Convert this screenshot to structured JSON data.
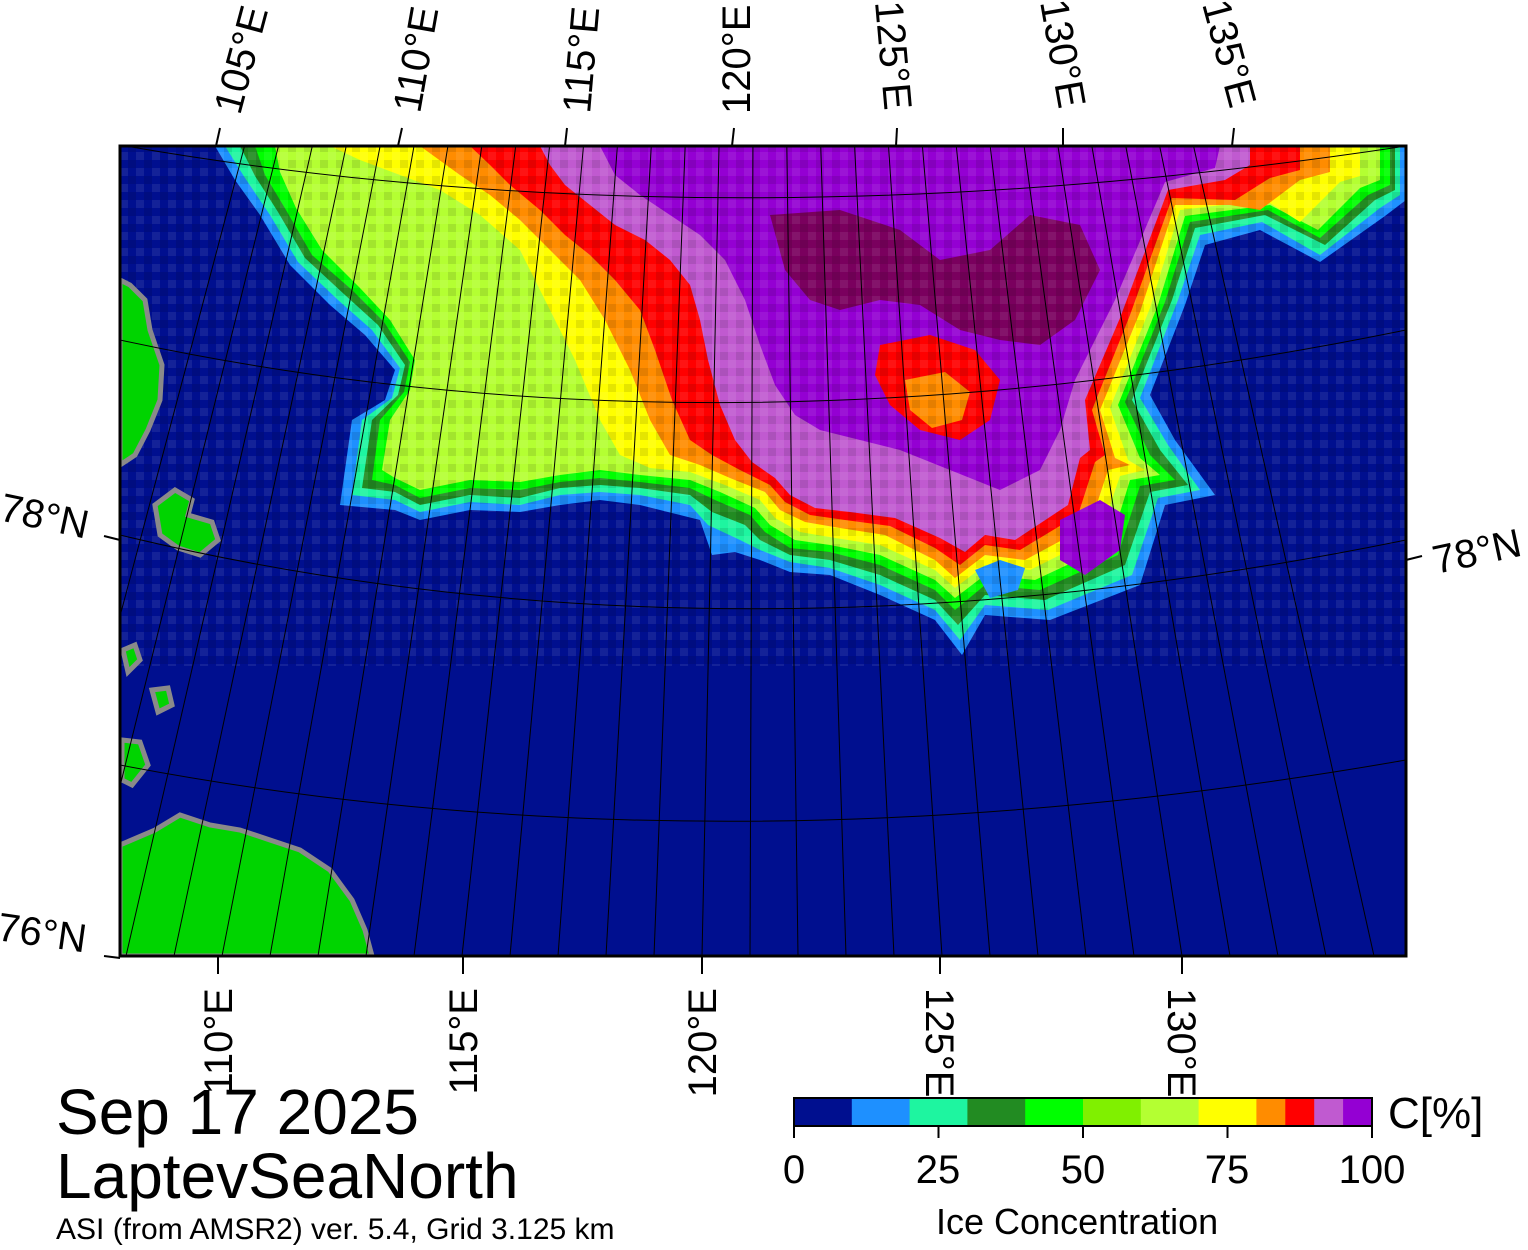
{
  "map": {
    "date": "Sep 17 2025",
    "region": "LaptevSeaNorth",
    "source": "ASI (from AMSR2) ver. 5.4,  Grid 3.125 km",
    "top_lon_labels": [
      "105°E",
      "110°E",
      "115°E",
      "120°E",
      "125°E",
      "130°E",
      "135°E"
    ],
    "bottom_lon_labels": [
      "110°E",
      "115°E",
      "120°E",
      "125°E",
      "130°E"
    ],
    "lat_labels": {
      "left_78": "78°N",
      "right_78": "78°N",
      "left_76": "76°N"
    },
    "colors": {
      "water": "#000f8f",
      "land": "#00d400",
      "coast": "#8a8a8a"
    }
  },
  "colorbar": {
    "title": "Ice Concentration",
    "unit": "C[%]",
    "ticks": [
      "0",
      "25",
      "50",
      "75",
      "100"
    ],
    "bins": [
      {
        "from": 0,
        "to": 10,
        "color": "#000f8f"
      },
      {
        "from": 10,
        "to": 20,
        "color": "#1e90ff"
      },
      {
        "from": 20,
        "to": 30,
        "color": "#1ef5a0"
      },
      {
        "from": 30,
        "to": 40,
        "color": "#228b22"
      },
      {
        "from": 40,
        "to": 50,
        "color": "#00ff00"
      },
      {
        "from": 50,
        "to": 60,
        "color": "#80f000"
      },
      {
        "from": 60,
        "to": 70,
        "color": "#b4ff32"
      },
      {
        "from": 70,
        "to": 80,
        "color": "#ffff00"
      },
      {
        "from": 80,
        "to": 85,
        "color": "#ff8c00"
      },
      {
        "from": 85,
        "to": 90,
        "color": "#ff0000"
      },
      {
        "from": 90,
        "to": 95,
        "color": "#c05ad0"
      },
      {
        "from": 95,
        "to": 100,
        "color": "#9400d3"
      }
    ]
  }
}
